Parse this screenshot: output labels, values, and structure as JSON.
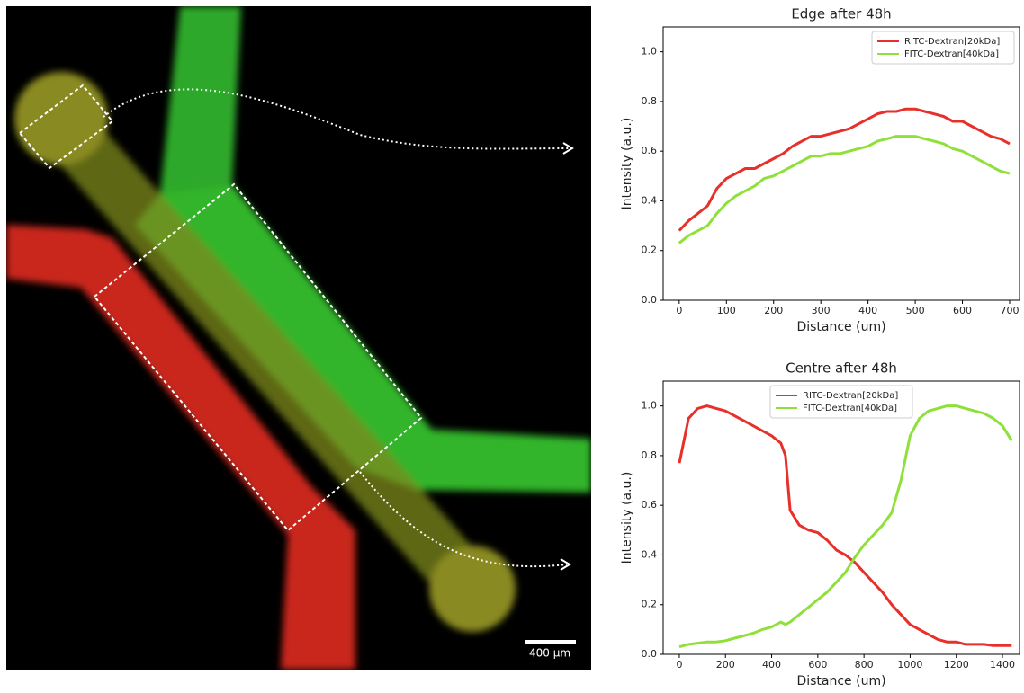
{
  "image": {
    "scale_bar": "400 µm"
  },
  "chart_data": [
    {
      "type": "line",
      "title": "Edge after 48h",
      "x_label": "Distance (um)",
      "y_label": "Intensity (a.u.)",
      "legend": "upper right",
      "x": [
        0,
        20,
        40,
        60,
        80,
        100,
        120,
        140,
        160,
        180,
        200,
        220,
        240,
        260,
        280,
        300,
        320,
        340,
        360,
        380,
        400,
        420,
        440,
        460,
        480,
        500,
        520,
        540,
        560,
        580,
        600,
        620,
        640,
        660,
        680,
        700
      ],
      "series": [
        {
          "name": "RITC-Dextran[20kDa]",
          "color": "#e8302a",
          "values": [
            0.28,
            0.32,
            0.35,
            0.38,
            0.45,
            0.49,
            0.51,
            0.53,
            0.53,
            0.55,
            0.57,
            0.59,
            0.62,
            0.64,
            0.66,
            0.66,
            0.67,
            0.68,
            0.69,
            0.71,
            0.73,
            0.75,
            0.76,
            0.76,
            0.77,
            0.77,
            0.76,
            0.75,
            0.74,
            0.72,
            0.72,
            0.7,
            0.68,
            0.66,
            0.65,
            0.63
          ]
        },
        {
          "name": "FITC-Dextran[40kDa]",
          "color": "#8fe03a",
          "values": [
            0.23,
            0.26,
            0.28,
            0.3,
            0.35,
            0.39,
            0.42,
            0.44,
            0.46,
            0.49,
            0.5,
            0.52,
            0.54,
            0.56,
            0.58,
            0.58,
            0.59,
            0.59,
            0.6,
            0.61,
            0.62,
            0.64,
            0.65,
            0.66,
            0.66,
            0.66,
            0.65,
            0.64,
            0.63,
            0.61,
            0.6,
            0.58,
            0.56,
            0.54,
            0.52,
            0.51
          ]
        }
      ],
      "xlim": [
        -34,
        721
      ],
      "xticks": [
        0,
        100,
        200,
        300,
        400,
        500,
        600,
        700
      ],
      "ylim": [
        0,
        1.1
      ],
      "yticks": [
        {
          "value": 0,
          "label": "0.0"
        },
        {
          "value": 0.2,
          "label": "0.2"
        },
        {
          "value": 0.4,
          "label": "0.4"
        },
        {
          "value": 0.6,
          "label": "0.6"
        },
        {
          "value": 0.8,
          "label": "0.8"
        },
        {
          "value": 1,
          "label": "1.0"
        }
      ]
    },
    {
      "type": "line",
      "title": "Centre after 48h",
      "x_label": "Distance (um)",
      "y_label": "Intensity (a.u.)",
      "legend": "upper center",
      "x": [
        0,
        40,
        80,
        120,
        160,
        200,
        240,
        280,
        320,
        360,
        400,
        440,
        460,
        480,
        520,
        560,
        600,
        640,
        680,
        720,
        760,
        800,
        840,
        880,
        920,
        960,
        1000,
        1040,
        1080,
        1120,
        1160,
        1200,
        1240,
        1280,
        1320,
        1360,
        1400,
        1440
      ],
      "series": [
        {
          "name": "RITC-Dextran[20kDa]",
          "color": "#e8302a",
          "values": [
            0.77,
            0.95,
            0.99,
            1.0,
            0.99,
            0.98,
            0.96,
            0.94,
            0.92,
            0.9,
            0.88,
            0.85,
            0.8,
            0.58,
            0.52,
            0.5,
            0.49,
            0.46,
            0.42,
            0.4,
            0.37,
            0.33,
            0.29,
            0.25,
            0.2,
            0.16,
            0.12,
            0.1,
            0.08,
            0.06,
            0.05,
            0.05,
            0.04,
            0.04,
            0.04,
            0.035,
            0.035,
            0.035
          ]
        },
        {
          "name": "FITC-Dextran[40kDa]",
          "color": "#8fe03a",
          "values": [
            0.03,
            0.04,
            0.045,
            0.05,
            0.05,
            0.055,
            0.065,
            0.075,
            0.085,
            0.1,
            0.11,
            0.13,
            0.12,
            0.13,
            0.16,
            0.19,
            0.22,
            0.25,
            0.29,
            0.33,
            0.39,
            0.44,
            0.48,
            0.52,
            0.57,
            0.7,
            0.88,
            0.95,
            0.98,
            0.99,
            1.0,
            1.0,
            0.99,
            0.98,
            0.97,
            0.95,
            0.92,
            0.86
          ]
        }
      ],
      "xlim": [
        -70,
        1474
      ],
      "xticks": [
        0,
        200,
        400,
        600,
        800,
        1000,
        1200,
        1400
      ],
      "ylim": [
        0,
        1.1
      ],
      "yticks": [
        {
          "value": 0,
          "label": "0.0"
        },
        {
          "value": 0.2,
          "label": "0.2"
        },
        {
          "value": 0.4,
          "label": "0.4"
        },
        {
          "value": 0.6,
          "label": "0.6"
        },
        {
          "value": 0.8,
          "label": "0.8"
        },
        {
          "value": 1,
          "label": "1.0"
        }
      ]
    }
  ]
}
